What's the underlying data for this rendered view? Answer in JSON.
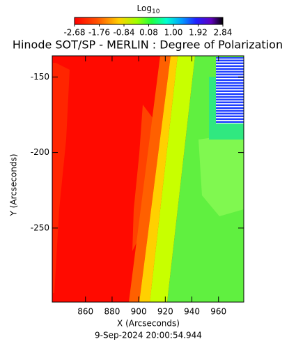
{
  "chart_data": {
    "type": "image",
    "colorbar_label": {
      "text": "Log",
      "subscript": "10"
    },
    "title": "Hinode SOT/SP - MERLIN : Degree of Polarization",
    "x_label": "X (Arcseconds)",
    "y_label": "Y (Arcseconds)",
    "date": "9-Sep-2024 20:00:54.944",
    "xlim": [
      835,
      979
    ],
    "ylim": [
      -299,
      -136
    ],
    "xticks": [
      860,
      880,
      900,
      920,
      940,
      960
    ],
    "yticks": [
      -250,
      -200,
      -150
    ],
    "clim": [
      -2.68,
      2.84
    ],
    "cticks": [
      -2.68,
      -1.76,
      -0.84,
      0.08,
      {
        "value": 1,
        "label": "1.00"
      },
      1.92,
      2.84
    ]
  }
}
